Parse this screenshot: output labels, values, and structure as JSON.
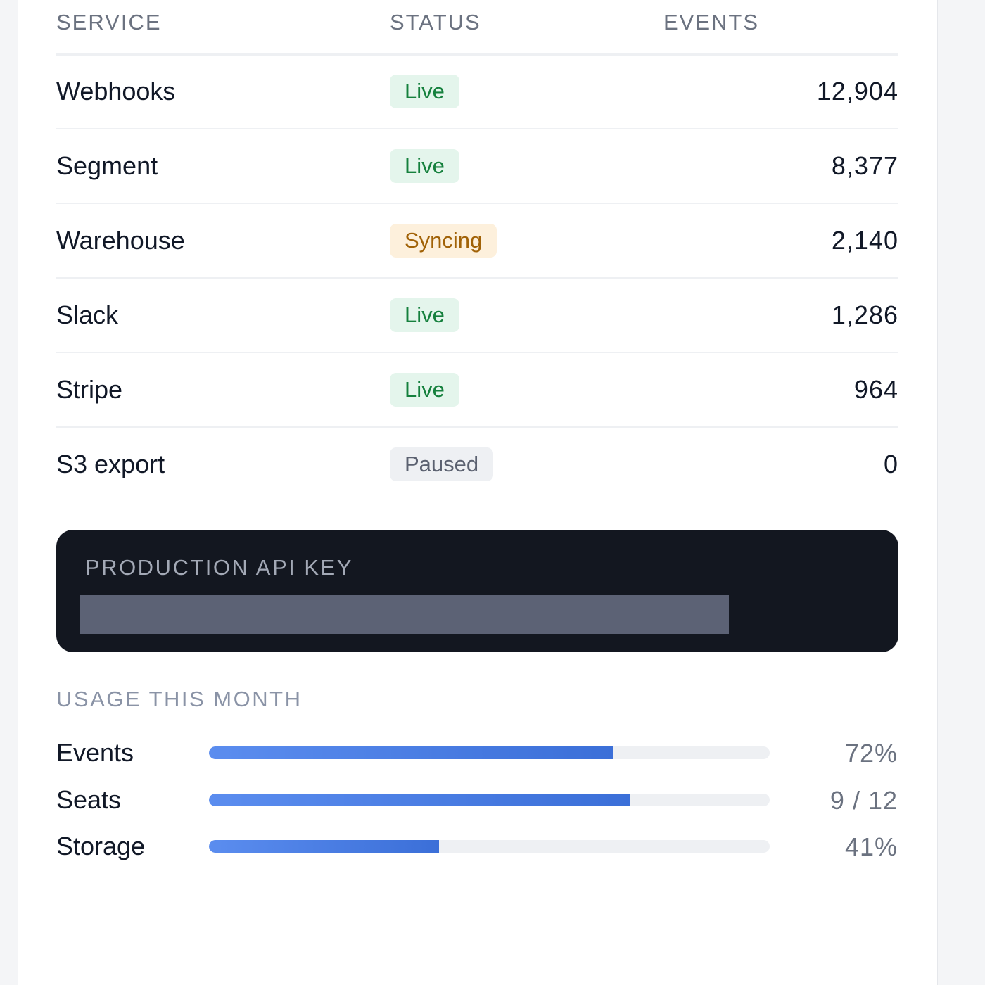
{
  "table": {
    "headers": [
      "SERVICE",
      "STATUS",
      "EVENTS"
    ],
    "rows": [
      {
        "service": "Webhooks",
        "status": "Live",
        "tone": "green",
        "events": "12,904"
      },
      {
        "service": "Segment",
        "status": "Live",
        "tone": "green",
        "events": "8,377"
      },
      {
        "service": "Warehouse",
        "status": "Syncing",
        "tone": "amber",
        "events": "2,140"
      },
      {
        "service": "Slack",
        "status": "Live",
        "tone": "green",
        "events": "1,286"
      },
      {
        "service": "Stripe",
        "status": "Live",
        "tone": "green",
        "events": "964"
      },
      {
        "service": "S3 export",
        "status": "Paused",
        "tone": "gray",
        "events": "0"
      }
    ]
  },
  "api_key": {
    "title": "PRODUCTION API KEY"
  },
  "usage": {
    "title": "USAGE THIS MONTH",
    "items": [
      {
        "name": "Events",
        "value": 72,
        "max": 100,
        "value_label": "72%"
      },
      {
        "name": "Seats",
        "value": 9,
        "max": 12,
        "value_label": "9 / 12"
      },
      {
        "name": "Storage",
        "value": 41,
        "max": 100,
        "value_label": "41%"
      }
    ]
  }
}
